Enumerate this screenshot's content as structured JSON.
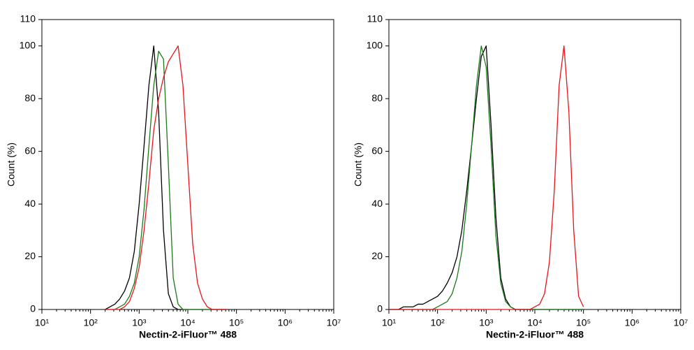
{
  "chart_data": [
    {
      "type": "line",
      "x_label": "Nectin-2-iFluor™ 488",
      "y_label": "Count  (%)",
      "log_x": true,
      "xlim": [
        10,
        10000000
      ],
      "ylim": [
        0,
        110
      ],
      "xticks": [
        {
          "value": 10,
          "label": "10¹"
        },
        {
          "value": 100,
          "label": "10²"
        },
        {
          "value": 1000,
          "label": "10³"
        },
        {
          "value": 10000,
          "label": "10⁴"
        },
        {
          "value": 100000,
          "label": "10⁵"
        },
        {
          "value": 1000000,
          "label": "10⁶"
        },
        {
          "value": 10000000,
          "label": "10⁷"
        }
      ],
      "yticks": [
        0,
        20,
        40,
        60,
        80,
        100,
        110
      ],
      "x": [
        200,
        251,
        316,
        398,
        501,
        631,
        794,
        1000,
        1259,
        1585,
        1995,
        2512,
        3162,
        3981,
        5012,
        6310,
        7943,
        10000,
        12589,
        15849,
        19953,
        25119,
        31623,
        39811,
        50119,
        63096
      ],
      "series": [
        {
          "color": "#000000",
          "values": [
            0,
            1,
            2,
            4,
            7,
            12,
            22,
            40,
            62,
            85,
            100,
            75,
            30,
            6,
            1,
            0,
            0,
            0,
            0,
            0,
            0,
            0,
            0,
            0,
            0,
            0
          ]
        },
        {
          "color": "#1a7a1a",
          "values": [
            0,
            0,
            0,
            1,
            2,
            5,
            10,
            20,
            38,
            62,
            85,
            98,
            95,
            55,
            12,
            2,
            0,
            0,
            0,
            0,
            0,
            0,
            0,
            0,
            0,
            0
          ]
        },
        {
          "color": "#e8141b",
          "values": [
            0,
            0,
            0,
            0,
            1,
            3,
            8,
            16,
            30,
            48,
            68,
            80,
            88,
            94,
            97,
            100,
            85,
            55,
            25,
            10,
            4,
            1,
            0,
            0,
            0,
            0
          ]
        }
      ]
    },
    {
      "type": "line",
      "x_label": "Nectin-2-iFluor™ 488",
      "y_label": "Count  (%)",
      "log_x": true,
      "xlim": [
        10,
        10000000
      ],
      "ylim": [
        0,
        110
      ],
      "xticks": [
        {
          "value": 10,
          "label": "10¹"
        },
        {
          "value": 100,
          "label": "10²"
        },
        {
          "value": 1000,
          "label": "10³"
        },
        {
          "value": 10000,
          "label": "10⁴"
        },
        {
          "value": 100000,
          "label": "10⁵"
        },
        {
          "value": 1000000,
          "label": "10⁶"
        },
        {
          "value": 10000000,
          "label": "10⁷"
        }
      ],
      "yticks": [
        0,
        20,
        40,
        60,
        80,
        100,
        110
      ],
      "x": [
        10,
        12.6,
        15.8,
        20,
        25.1,
        31.6,
        39.8,
        50.1,
        63.1,
        79.4,
        100,
        126,
        158,
        200,
        251,
        316,
        398,
        501,
        631,
        794,
        1000,
        1259,
        1585,
        1995,
        2512,
        3162,
        3981,
        5012,
        6310,
        7943,
        10000,
        12589,
        15849,
        19953,
        25119,
        31623,
        39811,
        50119,
        63096,
        79433,
        100000
      ],
      "series": [
        {
          "color": "#000000",
          "values": [
            0,
            0,
            0,
            1,
            1,
            1,
            2,
            2,
            3,
            4,
            5,
            7,
            10,
            14,
            20,
            30,
            45,
            62,
            80,
            96,
            100,
            70,
            35,
            12,
            4,
            1,
            0,
            0,
            0,
            0,
            0,
            0,
            0,
            0,
            0,
            0,
            0,
            0,
            0,
            0,
            0
          ]
        },
        {
          "color": "#1a7a1a",
          "values": [
            0,
            0,
            0,
            0,
            0,
            0,
            0,
            0,
            0,
            0,
            1,
            2,
            3,
            6,
            12,
            22,
            40,
            62,
            85,
            100,
            92,
            62,
            28,
            10,
            3,
            1,
            0,
            0,
            0,
            0,
            0,
            0,
            0,
            0,
            0,
            0,
            0,
            0,
            0,
            0,
            0
          ]
        },
        {
          "color": "#e8141b",
          "values": [
            0,
            0,
            0,
            0,
            0,
            0,
            0,
            0,
            0,
            0,
            0,
            0,
            0,
            0,
            0,
            0,
            0,
            0,
            0,
            0,
            0,
            0,
            0,
            0,
            0,
            0,
            0,
            0,
            0,
            0,
            1,
            2,
            6,
            18,
            45,
            85,
            100,
            75,
            30,
            5,
            1
          ]
        }
      ]
    }
  ]
}
